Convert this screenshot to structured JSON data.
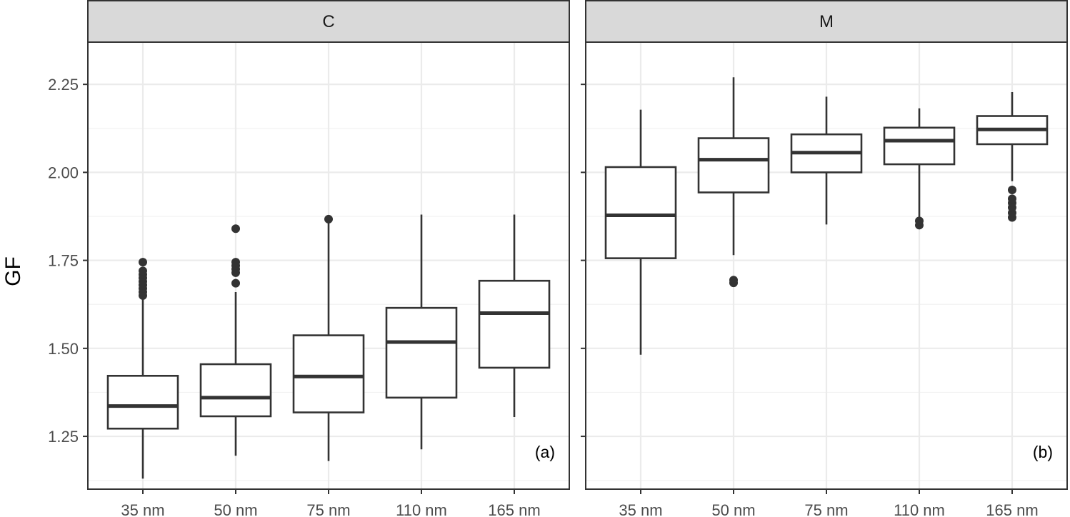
{
  "chart_data": {
    "type": "boxplot",
    "ylabel": "GF",
    "xlabel": "",
    "ylim": [
      1.1,
      2.37
    ],
    "yticks": [
      1.25,
      1.5,
      1.75,
      2.0,
      2.25
    ],
    "ytick_labels": [
      "1.25",
      "1.50",
      "1.75",
      "2.00",
      "2.25"
    ],
    "categories": [
      "35 nm",
      "50 nm",
      "75 nm",
      "110 nm",
      "165 nm"
    ],
    "grid": true,
    "panels": [
      {
        "strip_label": "C",
        "tag": "(a)",
        "boxes": [
          {
            "category": "35 nm",
            "whisker_low": 1.13,
            "q1": 1.272,
            "median": 1.336,
            "q3": 1.422,
            "whisker_high": 1.64,
            "outliers": [
              1.65,
              1.66,
              1.67,
              1.68,
              1.69,
              1.7,
              1.71,
              1.72,
              1.745
            ]
          },
          {
            "category": "50 nm",
            "whisker_low": 1.195,
            "q1": 1.307,
            "median": 1.36,
            "q3": 1.455,
            "whisker_high": 1.66,
            "outliers": [
              1.685,
              1.715,
              1.725,
              1.735,
              1.745,
              1.84
            ]
          },
          {
            "category": "75 nm",
            "whisker_low": 1.18,
            "q1": 1.318,
            "median": 1.42,
            "q3": 1.537,
            "whisker_high": 1.867,
            "outliers": [
              1.867
            ]
          },
          {
            "category": "110 nm",
            "whisker_low": 1.213,
            "q1": 1.36,
            "median": 1.518,
            "q3": 1.615,
            "whisker_high": 1.88,
            "outliers": []
          },
          {
            "category": "165 nm",
            "whisker_low": 1.305,
            "q1": 1.445,
            "median": 1.6,
            "q3": 1.692,
            "whisker_high": 1.88,
            "outliers": []
          }
        ]
      },
      {
        "strip_label": "M",
        "tag": "(b)",
        "boxes": [
          {
            "category": "35 nm",
            "whisker_low": 1.482,
            "q1": 1.756,
            "median": 1.878,
            "q3": 2.015,
            "whisker_high": 2.178,
            "outliers": []
          },
          {
            "category": "50 nm",
            "whisker_low": 1.765,
            "q1": 1.943,
            "median": 2.036,
            "q3": 2.097,
            "whisker_high": 2.27,
            "outliers": [
              1.686,
              1.694
            ]
          },
          {
            "category": "75 nm",
            "whisker_low": 1.852,
            "q1": 2.0,
            "median": 2.056,
            "q3": 2.108,
            "whisker_high": 2.215,
            "outliers": []
          },
          {
            "category": "110 nm",
            "whisker_low": 1.87,
            "q1": 2.023,
            "median": 2.09,
            "q3": 2.127,
            "whisker_high": 2.182,
            "outliers": [
              1.85,
              1.862
            ]
          },
          {
            "category": "165 nm",
            "whisker_low": 1.975,
            "q1": 2.08,
            "median": 2.122,
            "q3": 2.16,
            "whisker_high": 2.228,
            "outliers": [
              1.872,
              1.885,
              1.9,
              1.913,
              1.925,
              1.95
            ]
          }
        ]
      }
    ]
  },
  "colors": {
    "strip_fill": "#d9d9d9",
    "border": "#333333",
    "grid_major": "#ebebeb",
    "grid_minor": "#f2f2f2",
    "box_line": "#333333",
    "tick_text": "#4d4d4d"
  }
}
